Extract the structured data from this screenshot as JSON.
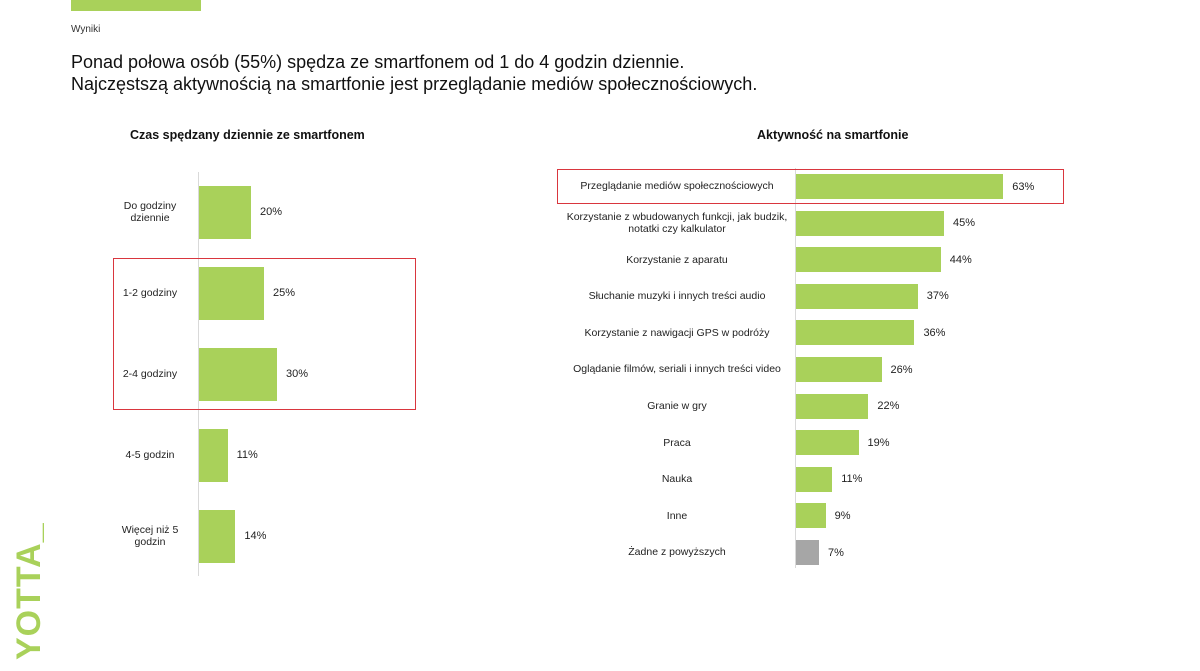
{
  "header": {
    "section": "Wyniki",
    "headline_1": "Ponad połowa osób (55%) spędza ze smartfonem od 1 do 4 godzin dziennie.",
    "headline_2": "Najczęstszą aktywnością na smartfonie jest przeglądanie mediów społecznościowych.",
    "logo": "YOTTA_"
  },
  "colors": {
    "bar": "#a9d15a",
    "bar_muted": "#a6a6a6",
    "highlight": "#d9363e",
    "brand": "#a9d15a"
  },
  "chart_data": [
    {
      "type": "bar",
      "orientation": "horizontal",
      "title": "Czas spędzany dziennie ze smartfonem",
      "categories": [
        "Do godziny dziennie",
        "1-2 godziny",
        "2-4 godziny",
        "4-5 godzin",
        "Więcej niż 5 godzin"
      ],
      "values": [
        20,
        25,
        30,
        11,
        14
      ],
      "labels": [
        "20%",
        "25%",
        "30%",
        "11%",
        "14%"
      ],
      "unit": "%",
      "highlighted": [
        "1-2 godziny",
        "2-4 godziny"
      ]
    },
    {
      "type": "bar",
      "orientation": "horizontal",
      "title": "Aktywność na smartfonie",
      "categories": [
        "Przeglądanie mediów społecznościowych",
        "Korzystanie z wbudowanych funkcji, jak budzik, notatki czy kalkulator",
        "Korzystanie z aparatu",
        "Słuchanie muzyki i innych treści audio",
        "Korzystanie z nawigacji GPS w podróży",
        "Oglądanie filmów, seriali i innych treści video",
        "Granie w gry",
        "Praca",
        "Nauka",
        "Inne",
        "Żadne z powyższych"
      ],
      "values": [
        63,
        45,
        44,
        37,
        36,
        26,
        22,
        19,
        11,
        9,
        7
      ],
      "labels": [
        "63%",
        "45%",
        "44%",
        "37%",
        "36%",
        "26%",
        "22%",
        "19%",
        "11%",
        "9%",
        "7%"
      ],
      "unit": "%",
      "highlighted": [
        "Przeglądanie mediów społecznościowych"
      ],
      "muted": [
        "Żadne z powyższych"
      ]
    }
  ]
}
